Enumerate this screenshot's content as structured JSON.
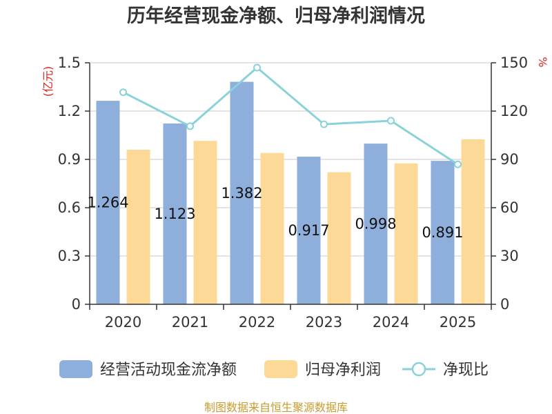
{
  "chart_data": {
    "type": "bar+line",
    "title": "历年经营现金净额、归母净利润情况",
    "categories": [
      "2020",
      "2021",
      "2022",
      "2023",
      "2024",
      "2025"
    ],
    "series": [
      {
        "name": "经营活动现金流净额",
        "type": "bar",
        "axis": "left",
        "color": "#8eaedb",
        "values": [
          1.264,
          1.123,
          1.382,
          0.917,
          0.998,
          0.891
        ],
        "labels": [
          "1.264",
          "1.123",
          "1.382",
          "0.917",
          "0.998",
          "0.891"
        ]
      },
      {
        "name": "归母净利润",
        "type": "bar",
        "axis": "left",
        "color": "#fdd998",
        "values": [
          0.96,
          1.015,
          0.94,
          0.82,
          0.875,
          1.025
        ]
      },
      {
        "name": "净现比",
        "type": "line",
        "axis": "right",
        "color": "#89d2d9",
        "values": [
          131.7,
          110.6,
          147.0,
          111.8,
          114.0,
          86.9
        ]
      }
    ],
    "y_left": {
      "unit": "(亿元)",
      "min": 0,
      "max": 1.5,
      "ticks": [
        0,
        0.3,
        0.6,
        0.9,
        1.2,
        1.5
      ],
      "tick_labels": [
        "0",
        "0.3",
        "0.6",
        "0.9",
        "1.2",
        "1.5"
      ]
    },
    "y_right": {
      "unit": "%",
      "min": 0,
      "max": 150,
      "ticks": [
        0,
        30,
        60,
        90,
        120,
        150
      ],
      "tick_labels": [
        "0",
        "30",
        "60",
        "90",
        "120",
        "150"
      ]
    },
    "grid": true,
    "legend_position": "bottom"
  },
  "source": "制图数据来自恒生聚源数据库"
}
